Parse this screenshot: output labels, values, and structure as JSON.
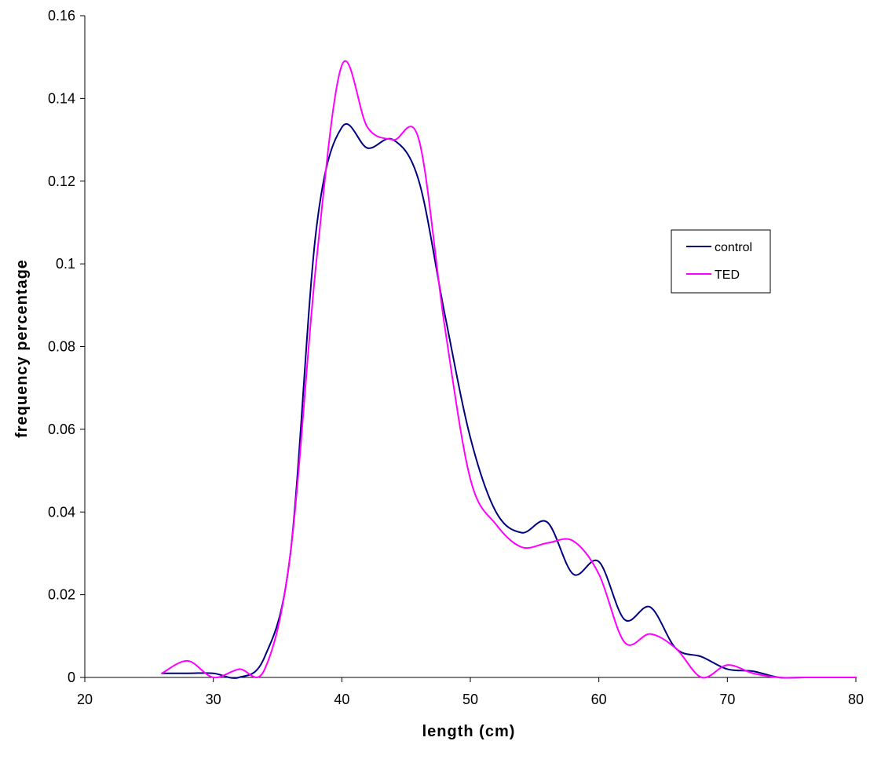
{
  "chart_data": {
    "type": "line",
    "title": "",
    "xlabel": "length (cm)",
    "ylabel": "frequency percentage",
    "xlim": [
      20,
      80
    ],
    "ylim": [
      0,
      0.16
    ],
    "x_ticks": [
      20,
      30,
      40,
      50,
      60,
      70,
      80
    ],
    "x_tick_labels": [
      "20",
      "30",
      "40",
      "50",
      "60",
      "70",
      "80"
    ],
    "y_ticks": [
      0,
      0.02,
      0.04,
      0.06,
      0.08,
      0.1,
      0.12,
      0.14,
      0.16
    ],
    "y_tick_labels": [
      "0",
      "0.02",
      "0.04",
      "0.06",
      "0.08",
      "0.1",
      "0.12",
      "0.14",
      "0.16"
    ],
    "grid": false,
    "legend_position": "right",
    "series": [
      {
        "name": "control",
        "color": "#000080",
        "x": [
          26,
          28,
          30,
          32,
          34,
          36,
          38,
          40,
          42,
          44,
          46,
          48,
          50,
          52,
          54,
          56,
          58,
          60,
          62,
          64,
          66,
          68,
          70,
          72,
          74,
          76,
          78,
          80
        ],
        "y": [
          0.001,
          0.001,
          0.001,
          0.0,
          0.005,
          0.03,
          0.108,
          0.133,
          0.128,
          0.13,
          0.12,
          0.088,
          0.058,
          0.04,
          0.035,
          0.0375,
          0.025,
          0.028,
          0.014,
          0.017,
          0.007,
          0.005,
          0.002,
          0.0015,
          0.0,
          0.0,
          0.0,
          0.0
        ]
      },
      {
        "name": "TED",
        "color": "#FF00FF",
        "x": [
          26,
          28,
          30,
          32,
          34,
          36,
          38,
          40,
          42,
          44,
          46,
          48,
          50,
          52,
          54,
          56,
          58,
          60,
          62,
          64,
          66,
          68,
          70,
          72,
          74,
          76,
          78,
          80
        ],
        "y": [
          0.001,
          0.004,
          0.0,
          0.002,
          0.002,
          0.03,
          0.1,
          0.148,
          0.133,
          0.13,
          0.13,
          0.085,
          0.048,
          0.037,
          0.0315,
          0.0325,
          0.033,
          0.025,
          0.0085,
          0.0105,
          0.007,
          0.0,
          0.003,
          0.001,
          0.0,
          0.0,
          0.0,
          0.0
        ]
      }
    ]
  }
}
